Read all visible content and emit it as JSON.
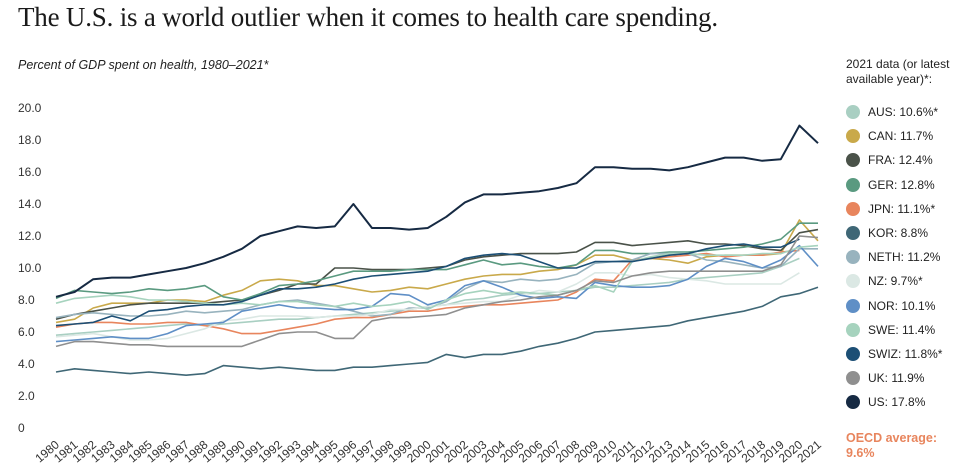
{
  "title": "The U.S. is a world outlier when it comes to health care spending.",
  "subtitle": "Percent of GDP spent on health, 1980–2021*",
  "legend_title": "2021 data (or latest available year)*:",
  "oecd_label": "OECD average:",
  "oecd_value": "9.6%",
  "chart_data": {
    "type": "line",
    "title": "The U.S. is a world outlier when it comes to health care spending.",
    "subtitle": "Percent of GDP spent on health, 1980–2021*",
    "xlabel": "",
    "ylabel": "",
    "ylim": [
      0,
      20
    ],
    "y_ticks": [
      "20.0",
      "18.0",
      "16.0",
      "14.0",
      "12.0",
      "10.0",
      "8.0",
      "6.0",
      "4.0",
      "2.0",
      "0"
    ],
    "grid": false,
    "legend_position": "right",
    "x": [
      1980,
      1981,
      1982,
      1983,
      1984,
      1985,
      1986,
      1987,
      1988,
      1989,
      1990,
      1991,
      1992,
      1993,
      1994,
      1995,
      1996,
      1997,
      1998,
      1999,
      2000,
      2001,
      2002,
      2003,
      2004,
      2005,
      2006,
      2007,
      2008,
      2009,
      2010,
      2011,
      2012,
      2013,
      2014,
      2015,
      2016,
      2017,
      2018,
      2019,
      2020,
      2021
    ],
    "series": [
      {
        "name": "AUS: 10.6%*",
        "color": "#a9cfc2",
        "values": [
          5.8,
          5.9,
          6.0,
          6.1,
          6.2,
          6.3,
          6.4,
          6.5,
          6.4,
          6.5,
          6.6,
          6.7,
          6.8,
          6.8,
          6.9,
          7.0,
          7.1,
          7.2,
          7.3,
          7.4,
          7.6,
          7.7,
          8.0,
          8.1,
          8.3,
          8.4,
          8.4,
          8.5,
          8.6,
          8.8,
          8.8,
          8.9,
          9.0,
          9.1,
          9.3,
          9.4,
          9.5,
          9.6,
          9.7,
          10.1,
          10.6,
          null
        ]
      },
      {
        "name": "CAN: 11.7%",
        "color": "#c9a94a",
        "values": [
          6.6,
          6.8,
          7.5,
          7.8,
          7.8,
          7.8,
          8.0,
          8.0,
          7.9,
          8.3,
          8.6,
          9.2,
          9.3,
          9.2,
          8.9,
          8.9,
          8.7,
          8.5,
          8.6,
          8.8,
          8.7,
          9.0,
          9.3,
          9.5,
          9.6,
          9.6,
          9.8,
          9.9,
          10.2,
          10.8,
          10.8,
          10.5,
          10.6,
          10.5,
          10.3,
          10.7,
          10.8,
          10.8,
          10.8,
          10.9,
          13.0,
          11.7
        ]
      },
      {
        "name": "FRA: 12.4%",
        "color": "#4a5249",
        "values": [
          6.8,
          7.1,
          7.3,
          7.5,
          7.7,
          7.8,
          7.8,
          7.8,
          7.8,
          7.9,
          8.0,
          8.3,
          8.6,
          9.0,
          9.0,
          10.0,
          10.0,
          9.9,
          9.9,
          9.9,
          10.0,
          10.1,
          10.5,
          10.7,
          10.8,
          10.9,
          10.9,
          10.9,
          11.0,
          11.6,
          11.6,
          11.4,
          11.5,
          11.6,
          11.7,
          11.5,
          11.5,
          11.4,
          11.2,
          11.1,
          12.2,
          12.4
        ]
      },
      {
        "name": "GER: 12.8%",
        "color": "#5a9a80",
        "values": [
          8.1,
          8.6,
          8.5,
          8.4,
          8.5,
          8.7,
          8.6,
          8.7,
          8.9,
          8.2,
          8.0,
          8.4,
          8.9,
          9.0,
          9.2,
          9.5,
          9.8,
          9.8,
          9.8,
          9.9,
          9.9,
          9.9,
          10.2,
          10.5,
          10.2,
          10.3,
          10.1,
          10.0,
          10.2,
          11.1,
          11.1,
          10.9,
          10.9,
          11.0,
          11.0,
          11.1,
          11.2,
          11.3,
          11.5,
          11.8,
          12.8,
          12.8
        ]
      },
      {
        "name": "JPN: 11.1%*",
        "color": "#e8855d",
        "values": [
          6.3,
          6.5,
          6.6,
          6.6,
          6.5,
          6.5,
          6.6,
          6.6,
          6.4,
          6.2,
          5.9,
          5.9,
          6.1,
          6.3,
          6.5,
          6.8,
          6.9,
          6.9,
          7.1,
          7.3,
          7.3,
          7.5,
          7.6,
          7.7,
          7.7,
          7.8,
          7.9,
          8.0,
          8.5,
          9.3,
          9.2,
          10.5,
          10.6,
          10.7,
          10.8,
          10.9,
          10.7,
          10.8,
          10.8,
          11.0,
          11.1,
          null
        ]
      },
      {
        "name": "KOR: 8.8%",
        "color": "#3f6776",
        "values": [
          3.5,
          3.7,
          3.6,
          3.5,
          3.4,
          3.5,
          3.4,
          3.3,
          3.4,
          3.9,
          3.8,
          3.7,
          3.8,
          3.7,
          3.6,
          3.6,
          3.8,
          3.8,
          3.9,
          4.0,
          4.1,
          4.6,
          4.4,
          4.6,
          4.6,
          4.8,
          5.1,
          5.3,
          5.6,
          6.0,
          6.1,
          6.2,
          6.3,
          6.4,
          6.7,
          6.9,
          7.1,
          7.3,
          7.6,
          8.2,
          8.4,
          8.8
        ]
      },
      {
        "name": "NETH: 11.2%",
        "color": "#98b3be",
        "values": [
          6.9,
          7.1,
          7.2,
          7.1,
          7.0,
          7.0,
          7.1,
          7.3,
          7.2,
          7.3,
          7.4,
          7.7,
          7.9,
          8.0,
          7.8,
          7.6,
          7.3,
          7.0,
          7.1,
          7.5,
          7.5,
          7.9,
          8.7,
          9.2,
          9.1,
          9.3,
          9.2,
          9.3,
          9.6,
          10.3,
          10.4,
          10.5,
          10.9,
          10.9,
          10.9,
          10.5,
          10.4,
          10.2,
          10.0,
          10.1,
          11.2,
          11.2
        ]
      },
      {
        "name": "NZ: 9.7%*",
        "color": "#dbe8e4",
        "values": [
          5.7,
          5.8,
          5.9,
          5.7,
          5.5,
          5.5,
          5.6,
          5.9,
          6.2,
          6.7,
          6.8,
          7.0,
          7.0,
          7.0,
          6.9,
          7.0,
          7.0,
          7.1,
          7.4,
          7.4,
          7.6,
          7.7,
          7.8,
          7.9,
          7.9,
          8.3,
          8.6,
          8.5,
          9.0,
          9.7,
          9.7,
          9.5,
          9.6,
          9.4,
          9.3,
          9.2,
          9.0,
          9.0,
          9.0,
          9.0,
          9.7,
          null
        ]
      },
      {
        "name": "NOR: 10.1%",
        "color": "#5f8fc6",
        "values": [
          5.4,
          5.5,
          5.6,
          5.7,
          5.6,
          5.6,
          5.9,
          6.4,
          6.5,
          6.6,
          7.3,
          7.5,
          7.7,
          7.5,
          7.5,
          7.4,
          7.4,
          7.6,
          8.4,
          8.3,
          7.7,
          8.0,
          8.9,
          9.2,
          8.8,
          8.3,
          8.1,
          8.2,
          8.1,
          9.1,
          8.9,
          8.8,
          8.8,
          8.9,
          9.3,
          10.1,
          10.6,
          10.4,
          10.0,
          10.5,
          11.4,
          10.1
        ]
      },
      {
        "name": "SWE: 11.4%",
        "color": "#a6d3be",
        "values": [
          7.8,
          8.1,
          8.2,
          8.3,
          8.2,
          8.0,
          8.0,
          7.9,
          7.8,
          7.7,
          7.8,
          7.7,
          7.9,
          7.9,
          7.7,
          7.6,
          7.8,
          7.6,
          7.7,
          7.9,
          7.4,
          8.0,
          8.4,
          8.6,
          8.4,
          8.5,
          8.4,
          8.3,
          8.6,
          8.9,
          8.5,
          10.4,
          10.7,
          10.9,
          10.9,
          10.8,
          10.8,
          10.8,
          10.9,
          10.9,
          11.3,
          11.4
        ]
      },
      {
        "name": "SWIZ: 11.8%*",
        "color": "#1c4f75",
        "values": [
          6.4,
          6.5,
          6.6,
          7.0,
          6.7,
          7.3,
          7.4,
          7.6,
          7.7,
          7.7,
          7.9,
          8.3,
          8.7,
          8.7,
          8.8,
          9.0,
          9.3,
          9.5,
          9.6,
          9.7,
          9.8,
          10.1,
          10.6,
          10.8,
          10.9,
          10.8,
          10.4,
          10.0,
          10.0,
          10.4,
          10.4,
          10.4,
          10.6,
          10.8,
          10.9,
          11.2,
          11.4,
          11.5,
          11.3,
          11.3,
          11.8,
          null
        ]
      },
      {
        "name": "UK: 11.9%",
        "color": "#8f8f8f",
        "values": [
          5.1,
          5.4,
          5.4,
          5.3,
          5.2,
          5.2,
          5.1,
          5.1,
          5.1,
          5.1,
          5.1,
          5.5,
          5.9,
          6.0,
          6.0,
          5.6,
          5.6,
          6.7,
          6.9,
          6.9,
          7.0,
          7.1,
          7.5,
          7.7,
          7.9,
          8.0,
          8.2,
          8.3,
          8.6,
          9.2,
          9.1,
          9.5,
          9.7,
          9.8,
          9.8,
          9.8,
          9.8,
          9.8,
          9.8,
          10.2,
          12.0,
          11.9
        ]
      },
      {
        "name": "US: 17.8%",
        "color": "#162a43",
        "values": [
          8.2,
          8.5,
          9.3,
          9.4,
          9.4,
          9.6,
          9.8,
          10.0,
          10.3,
          10.7,
          11.2,
          12.0,
          12.3,
          12.6,
          12.5,
          12.6,
          14.0,
          12.5,
          12.5,
          12.4,
          12.5,
          13.2,
          14.1,
          14.6,
          14.6,
          14.7,
          14.8,
          15.0,
          15.3,
          16.3,
          16.3,
          16.2,
          16.2,
          16.1,
          16.3,
          16.6,
          16.9,
          16.9,
          16.7,
          16.8,
          18.9,
          17.8
        ]
      }
    ]
  }
}
